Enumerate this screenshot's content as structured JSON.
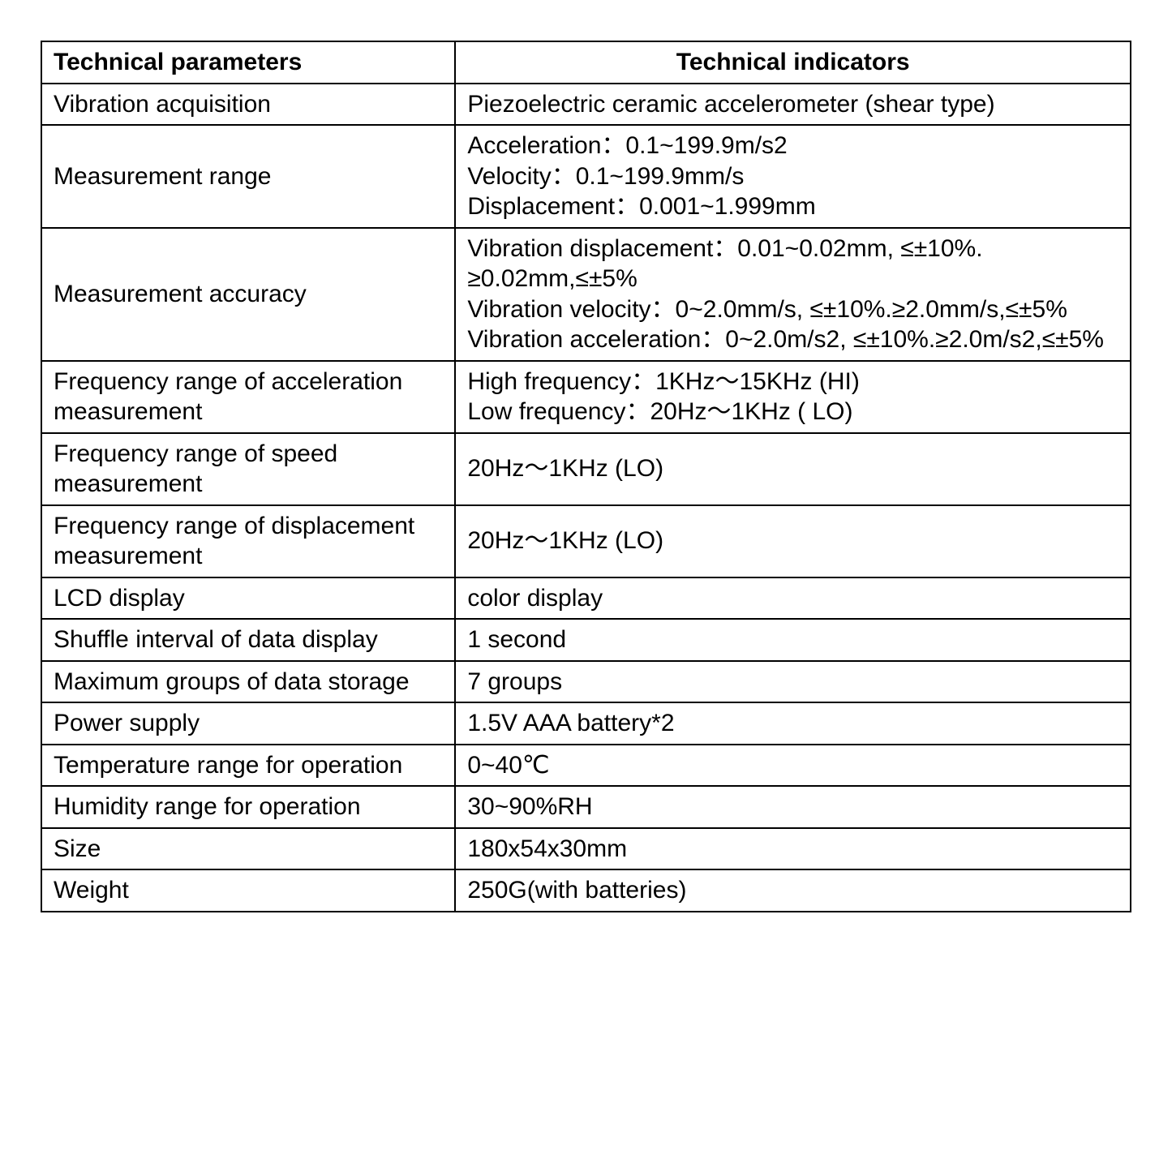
{
  "table": {
    "type": "table",
    "background_color": "#ffffff",
    "border_color": "#000000",
    "text_color": "#000000",
    "font_size_pt": 22,
    "header_font_weight": "bold",
    "columns": [
      {
        "label": "Technical parameters",
        "width_pct": 38,
        "align": "left"
      },
      {
        "label": "Technical indicators",
        "width_pct": 62,
        "align": "center"
      }
    ],
    "rows": [
      {
        "param": "Vibration acquisition",
        "indicator": "Piezoelectric ceramic accelerometer (shear type)"
      },
      {
        "param": "Measurement range",
        "indicator": "Acceleration：0.1~199.9m/s2\nVelocity：0.1~199.9mm/s\nDisplacement：0.001~1.999mm"
      },
      {
        "param": "Measurement accuracy",
        "indicator": "Vibration displacement：0.01~0.02mm, ≤±10%. ≥0.02mm,≤±5%\nVibration velocity：0~2.0mm/s, ≤±10%.≥2.0mm/s,≤±5%\nVibration acceleration：0~2.0m/s2, ≤±10%.≥2.0m/s2,≤±5%"
      },
      {
        "param": "Frequency range of acceleration measurement",
        "indicator": "High frequency：1KHz～15KHz (HI)\nLow frequency：20Hz～1KHz ( LO)"
      },
      {
        "param": "Frequency range of speed measurement",
        "indicator": "20Hz～1KHz (LO)"
      },
      {
        "param": "Frequency range of displacement measurement",
        "indicator": "20Hz～1KHz (LO)"
      },
      {
        "param": "LCD display",
        "indicator": "color display"
      },
      {
        "param": "Shuffle interval of data display",
        "indicator": "1 second"
      },
      {
        "param": "Maximum groups of data storage",
        "indicator": "7 groups"
      },
      {
        "param": "Power supply",
        "indicator": "1.5V AAA battery*2"
      },
      {
        "param": "Temperature range for operation",
        "indicator": "0~40℃"
      },
      {
        "param": "Humidity range for operation",
        "indicator": "30~90%RH"
      },
      {
        "param": "Size",
        "indicator": "180x54x30mm"
      },
      {
        "param": "Weight",
        "indicator": "250G(with batteries)"
      }
    ]
  }
}
